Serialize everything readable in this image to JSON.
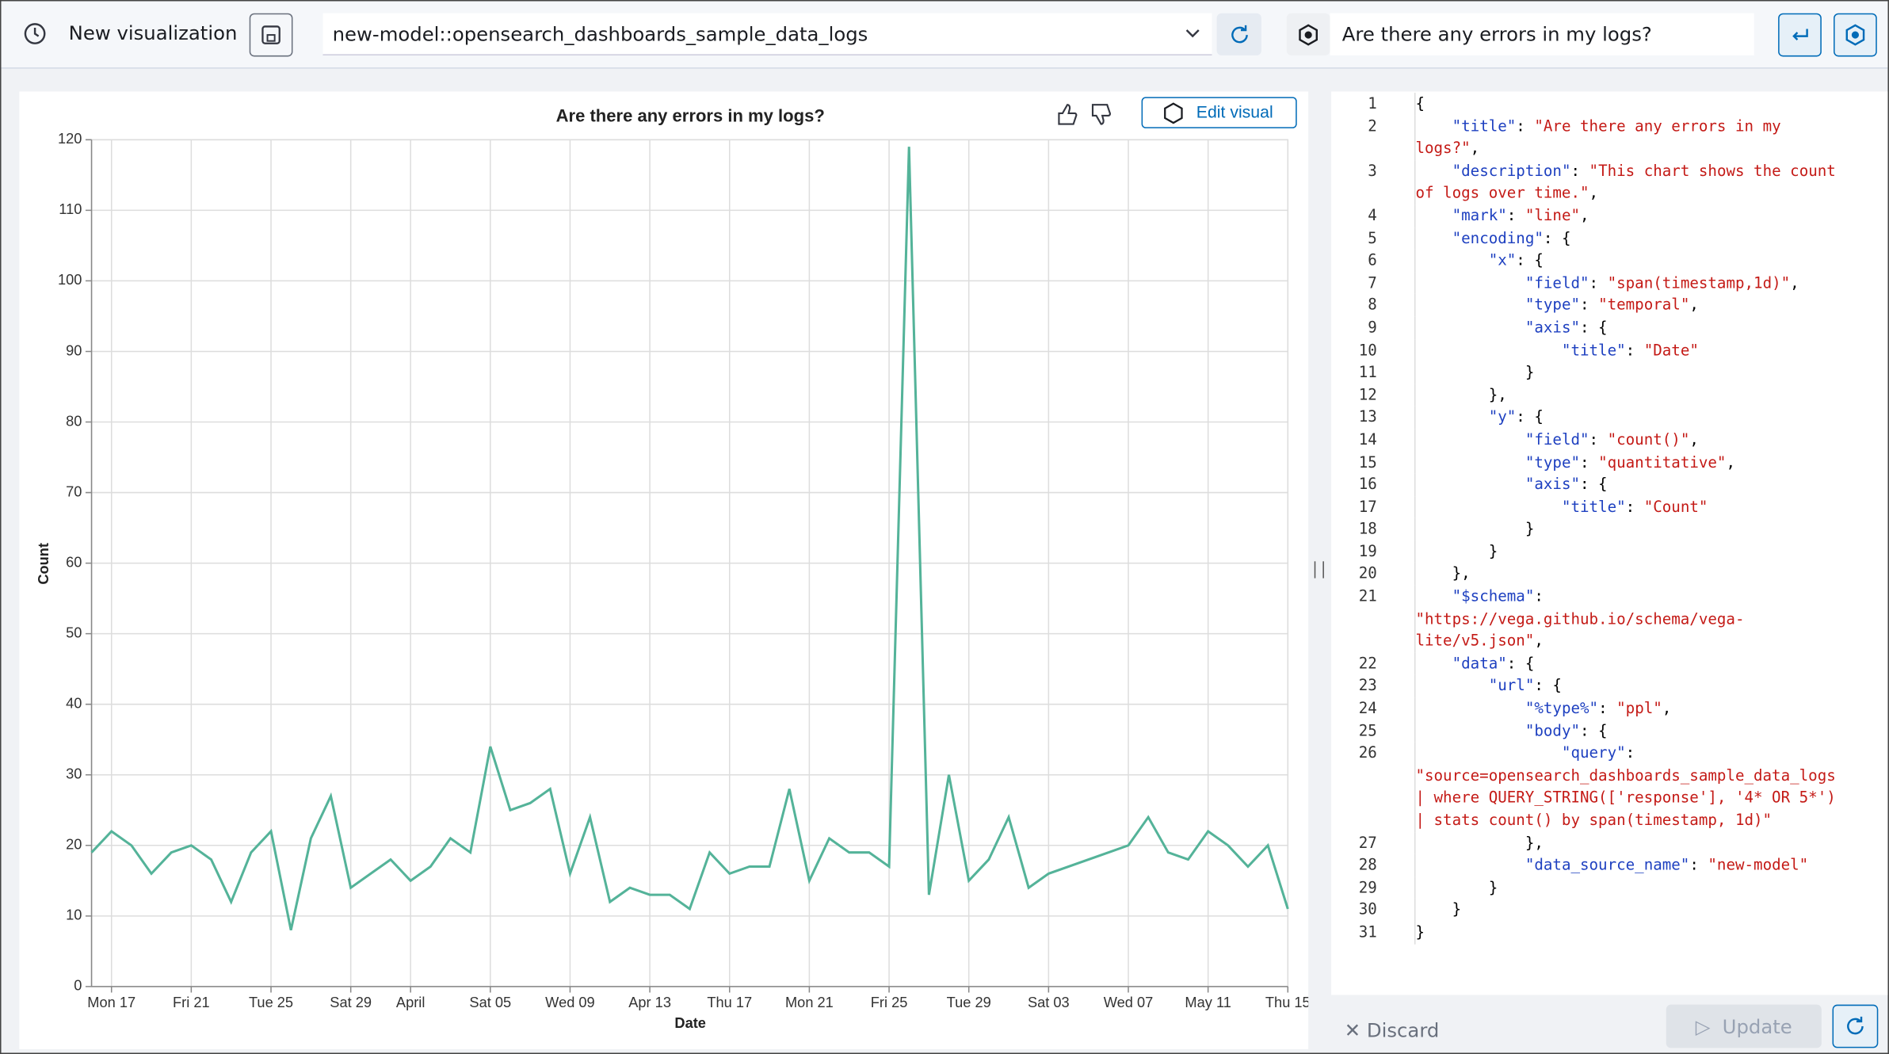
{
  "toolbar": {
    "title": "New visualization",
    "index": "new-model::opensearch_dashboards_sample_data_logs",
    "question": "Are there any errors in my logs?"
  },
  "chart_panel": {
    "edit_button": "Edit visual"
  },
  "chart_data": {
    "type": "line",
    "title": "Are there any errors in my logs?",
    "x_label": "Date",
    "y_label": "Count",
    "color": "#54b399",
    "grid": true,
    "x": [
      "Mar 16",
      "Mar 17",
      "Mar 18",
      "Mar 19",
      "Mar 20",
      "Mar 21",
      "Mar 22",
      "Mar 23",
      "Mar 24",
      "Mar 25",
      "Mar 26",
      "Mar 27",
      "Mar 28",
      "Mar 29",
      "Mar 30",
      "Mar 31",
      "Apr 1",
      "Apr 2",
      "Apr 3",
      "Apr 4",
      "Apr 5",
      "Apr 6",
      "Apr 7",
      "Apr 8",
      "Apr 9",
      "Apr 10",
      "Apr 11",
      "Apr 12",
      "Apr 13",
      "Apr 14",
      "Apr 15",
      "Apr 16",
      "Apr 17",
      "Apr 18",
      "Apr 19",
      "Apr 20",
      "Apr 21",
      "Apr 22",
      "Apr 23",
      "Apr 24",
      "Apr 25",
      "Apr 26",
      "Apr 27",
      "Apr 28",
      "Apr 29",
      "Apr 30",
      "May 1",
      "May 2",
      "May 3",
      "May 7",
      "May 8",
      "May 9",
      "May 10",
      "May 11",
      "May 12",
      "May 13",
      "May 14",
      "May 15"
    ],
    "values": [
      19,
      22,
      20,
      16,
      19,
      20,
      18,
      12,
      19,
      22,
      8,
      21,
      27,
      14,
      16,
      18,
      15,
      17,
      21,
      19,
      34,
      25,
      26,
      28,
      16,
      24,
      12,
      14,
      13,
      13,
      11,
      19,
      16,
      17,
      17,
      28,
      15,
      21,
      19,
      19,
      17,
      119,
      13,
      30,
      15,
      18,
      24,
      14,
      16,
      20,
      24,
      19,
      18,
      22,
      20,
      17,
      20,
      11
    ],
    "xlim": [
      "Mar 16",
      "May 15"
    ],
    "xticks": [
      {
        "value": "Mar 17",
        "label": "Mon 17"
      },
      {
        "value": "Mar 21",
        "label": "Fri 21"
      },
      {
        "value": "Mar 25",
        "label": "Tue 25"
      },
      {
        "value": "Mar 29",
        "label": "Sat 29"
      },
      {
        "value": "Apr 1",
        "label": "April"
      },
      {
        "value": "Apr 5",
        "label": "Sat 05"
      },
      {
        "value": "Apr 9",
        "label": "Wed 09"
      },
      {
        "value": "Apr 13",
        "label": "Apr 13"
      },
      {
        "value": "Apr 17",
        "label": "Thu 17"
      },
      {
        "value": "Apr 21",
        "label": "Mon 21"
      },
      {
        "value": "Apr 25",
        "label": "Fri 25"
      },
      {
        "value": "Apr 29",
        "label": "Tue 29"
      },
      {
        "value": "May 3",
        "label": "Sat 03"
      },
      {
        "value": "May 7",
        "label": "Wed 07"
      },
      {
        "value": "May 11",
        "label": "May 11"
      },
      {
        "value": "May 15",
        "label": "Thu 15"
      }
    ],
    "ylim": [
      0,
      120
    ],
    "yticks": [
      0,
      10,
      20,
      30,
      40,
      50,
      60,
      70,
      80,
      90,
      100,
      110,
      120
    ]
  },
  "editor": {
    "lines": [
      {
        "n": 1,
        "tokens": [
          "{"
        ]
      },
      {
        "n": 2,
        "tokens": [
          "    \"title\"",
          ": ",
          "\"Are there any errors in my logs?\"",
          ","
        ]
      },
      {
        "n": 3,
        "tokens": [
          "    \"description\"",
          ": ",
          "\"This chart shows the count of logs over time.\"",
          ","
        ]
      },
      {
        "n": 4,
        "tokens": [
          "    \"mark\"",
          ": ",
          "\"line\"",
          ","
        ]
      },
      {
        "n": 5,
        "tokens": [
          "    \"encoding\"",
          ": {"
        ]
      },
      {
        "n": 6,
        "tokens": [
          "        \"x\"",
          ": {"
        ]
      },
      {
        "n": 7,
        "tokens": [
          "            \"field\"",
          ": ",
          "\"span(timestamp,1d)\"",
          ","
        ]
      },
      {
        "n": 8,
        "tokens": [
          "            \"type\"",
          ": ",
          "\"temporal\"",
          ","
        ]
      },
      {
        "n": 9,
        "tokens": [
          "            \"axis\"",
          ": {"
        ]
      },
      {
        "n": 10,
        "tokens": [
          "                \"title\"",
          ": ",
          "\"Date\""
        ]
      },
      {
        "n": 11,
        "tokens": [
          "            }"
        ]
      },
      {
        "n": 12,
        "tokens": [
          "        },"
        ]
      },
      {
        "n": 13,
        "tokens": [
          "        \"y\"",
          ": {"
        ]
      },
      {
        "n": 14,
        "tokens": [
          "            \"field\"",
          ": ",
          "\"count()\"",
          ","
        ]
      },
      {
        "n": 15,
        "tokens": [
          "            \"type\"",
          ": ",
          "\"quantitative\"",
          ","
        ]
      },
      {
        "n": 16,
        "tokens": [
          "            \"axis\"",
          ": {"
        ]
      },
      {
        "n": 17,
        "tokens": [
          "                \"title\"",
          ": ",
          "\"Count\""
        ]
      },
      {
        "n": 18,
        "tokens": [
          "            }"
        ]
      },
      {
        "n": 19,
        "tokens": [
          "        }"
        ]
      },
      {
        "n": 20,
        "tokens": [
          "    },"
        ]
      },
      {
        "n": 21,
        "tokens": [
          "    \"$schema\"",
          ": ",
          "\"https://vega.github.io/schema/vega-lite/v5.json\"",
          ","
        ]
      },
      {
        "n": 22,
        "tokens": [
          "    \"data\"",
          ": {"
        ]
      },
      {
        "n": 23,
        "tokens": [
          "        \"url\"",
          ": {"
        ]
      },
      {
        "n": 24,
        "tokens": [
          "            \"%type%\"",
          ": ",
          "\"ppl\"",
          ","
        ]
      },
      {
        "n": 25,
        "tokens": [
          "            \"body\"",
          ": {"
        ]
      },
      {
        "n": 26,
        "tokens": [
          "                \"query\"",
          ": ",
          "\"source=opensearch_dashboards_sample_data_logs| where QUERY_STRING(['response'], '4* OR 5*') | stats count() by span(timestamp, 1d)\""
        ]
      },
      {
        "n": 27,
        "tokens": [
          "            },"
        ]
      },
      {
        "n": 28,
        "tokens": [
          "            \"data_source_name\"",
          ": ",
          "\"new-model\""
        ]
      },
      {
        "n": 29,
        "tokens": [
          "        }"
        ]
      },
      {
        "n": 30,
        "tokens": [
          "    }"
        ]
      },
      {
        "n": 31,
        "tokens": [
          "}"
        ]
      }
    ]
  },
  "footer": {
    "discard": "Discard",
    "update": "Update"
  }
}
